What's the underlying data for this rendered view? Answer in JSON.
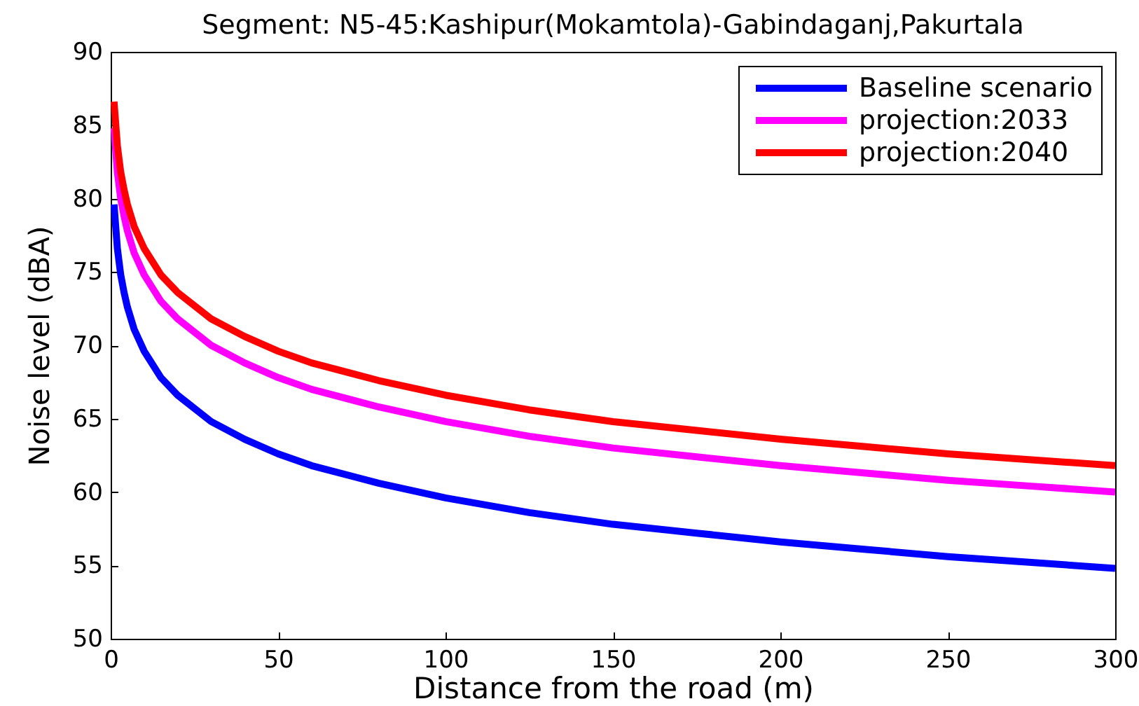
{
  "chart_data": {
    "type": "line",
    "title": "Segment: N5-45:Kashipur(Mokamtola)-Gabindaganj,Pakurtala",
    "xlabel": "Distance from the road (m)",
    "ylabel": "Noise level (dBA)",
    "x": [
      1,
      2,
      3,
      4,
      5,
      7,
      10,
      15,
      20,
      30,
      40,
      50,
      60,
      80,
      100,
      125,
      150,
      175,
      200,
      225,
      250,
      275,
      300
    ],
    "series": [
      {
        "name": "Baseline scenario",
        "color": "#0000ff",
        "values": [
          79.6,
          76.6,
          74.8,
          73.6,
          72.6,
          71.1,
          69.6,
          67.8,
          66.6,
          64.8,
          63.6,
          62.6,
          61.8,
          60.6,
          59.6,
          58.6,
          57.8,
          57.2,
          56.6,
          56.1,
          55.6,
          55.2,
          54.8
        ]
      },
      {
        "name": "projection:2033",
        "color": "#ff00ff",
        "values": [
          84.8,
          81.8,
          80.0,
          78.8,
          77.8,
          76.3,
          74.8,
          73.0,
          71.8,
          70.0,
          68.8,
          67.8,
          67.0,
          65.8,
          64.8,
          63.8,
          63.0,
          62.4,
          61.8,
          61.3,
          60.8,
          60.4,
          60.0
        ]
      },
      {
        "name": "projection:2040",
        "color": "#ff0000",
        "values": [
          86.6,
          83.6,
          81.8,
          80.6,
          79.6,
          78.1,
          76.6,
          74.8,
          73.6,
          71.8,
          70.6,
          69.6,
          68.8,
          67.6,
          66.6,
          65.6,
          64.8,
          64.2,
          63.6,
          63.1,
          62.6,
          62.2,
          61.8
        ]
      }
    ],
    "xlim": [
      0,
      300
    ],
    "ylim": [
      50,
      90
    ],
    "xticks": [
      0,
      50,
      100,
      150,
      200,
      250,
      300
    ],
    "yticks": [
      50,
      55,
      60,
      65,
      70,
      75,
      80,
      85,
      90
    ],
    "legend": "top right",
    "line_style": "solid"
  }
}
